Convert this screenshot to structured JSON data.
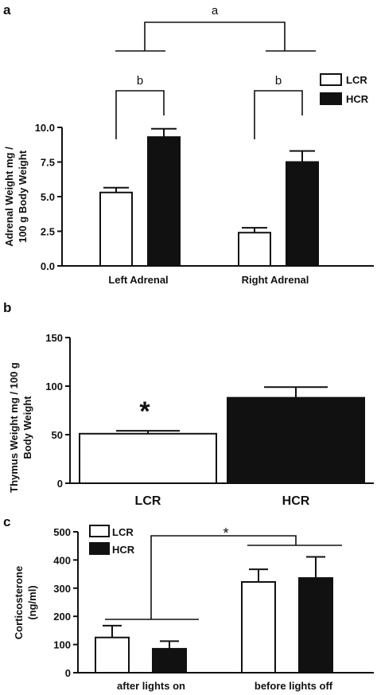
{
  "colors": {
    "LCR": "#ffffff",
    "HCR": "#111111",
    "outline": "#111111"
  },
  "chart_data": [
    {
      "panel": "a",
      "type": "bar",
      "ylabel": [
        "Adrenal Weight mg /",
        "100 g Body Weight"
      ],
      "ylim": [
        0,
        10
      ],
      "yticks": [
        "0.0",
        "2.5",
        "5.0",
        "7.5",
        "10.0"
      ],
      "categories": [
        "Left Adrenal",
        "Right Adrenal"
      ],
      "series": [
        {
          "name": "LCR",
          "values": [
            5.3,
            2.4
          ],
          "errors": [
            0.35,
            0.35
          ]
        },
        {
          "name": "HCR",
          "values": [
            9.3,
            7.5
          ],
          "errors": [
            0.6,
            0.8
          ]
        }
      ],
      "legend": {
        "entries": [
          "LCR",
          "HCR"
        ],
        "placement": "top-right"
      },
      "annotations": {
        "overall": "a",
        "left": "b",
        "right": "b"
      }
    },
    {
      "panel": "b",
      "type": "bar",
      "ylabel": [
        "Thymus Weight mg / 100 g",
        "Body Weight"
      ],
      "ylim": [
        0,
        150
      ],
      "yticks": [
        "0",
        "50",
        "100",
        "150"
      ],
      "categories": [
        "LCR",
        "HCR"
      ],
      "values": [
        51,
        88
      ],
      "errors": [
        3,
        11
      ],
      "annotations": {
        "star": "*"
      }
    },
    {
      "panel": "c",
      "type": "bar",
      "ylabel": [
        "Corticosterone",
        "(ng/ml)"
      ],
      "ylim": [
        0,
        500
      ],
      "yticks": [
        "0",
        "100",
        "200",
        "300",
        "400",
        "500"
      ],
      "categories": [
        "after lights on",
        "before lights off"
      ],
      "series": [
        {
          "name": "LCR",
          "values": [
            125,
            322
          ],
          "errors": [
            42,
            45
          ]
        },
        {
          "name": "HCR",
          "values": [
            85,
            336
          ],
          "errors": [
            27,
            75
          ]
        }
      ],
      "legend": {
        "entries": [
          "LCR",
          "HCR"
        ],
        "placement": "top-left"
      },
      "annotations": {
        "star": "*"
      }
    }
  ]
}
